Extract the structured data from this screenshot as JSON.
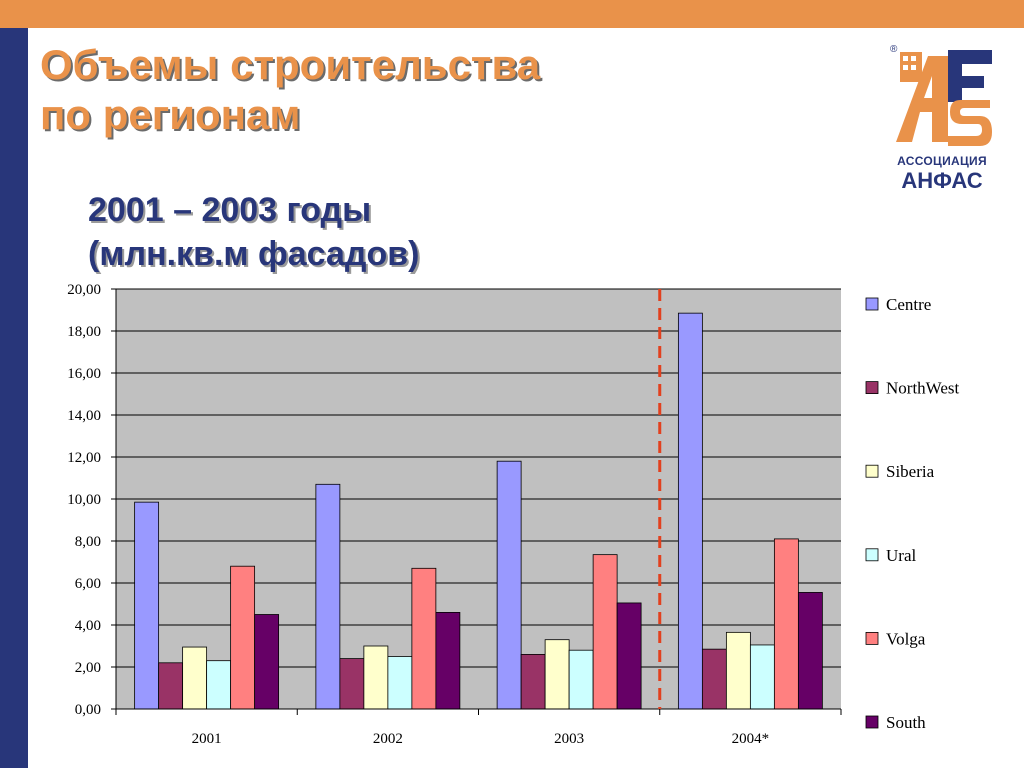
{
  "slide": {
    "title_line1": "Объемы строительства",
    "title_line2": "по регионам",
    "subtitle_line1": "2001 – 2003 годы",
    "subtitle_line2": "(млн.кв.м фасадов)"
  },
  "logo": {
    "association": "АССОЦИАЦИЯ",
    "name": "АНФАС",
    "registered": "®"
  },
  "colors": {
    "top_bar": "#e9924a",
    "side_bar": "#28367a",
    "plot_background": "#c0c0c0",
    "separator": "#e2401e"
  },
  "chart_data": {
    "type": "bar",
    "categories": [
      "2001",
      "2002",
      "2003",
      "2004*"
    ],
    "series": [
      {
        "name": "Centre",
        "color": "#9999ff",
        "values": [
          9.85,
          10.7,
          11.8,
          18.85
        ]
      },
      {
        "name": "NorthWest",
        "color": "#993366",
        "values": [
          2.2,
          2.4,
          2.6,
          2.85
        ]
      },
      {
        "name": "Siberia",
        "color": "#ffffcc",
        "values": [
          2.95,
          3.0,
          3.3,
          3.65
        ]
      },
      {
        "name": "Ural",
        "color": "#ccffff",
        "values": [
          2.3,
          2.5,
          2.8,
          3.05
        ]
      },
      {
        "name": "Volga",
        "color": "#ff8080",
        "values": [
          6.8,
          6.7,
          7.35,
          8.1
        ]
      },
      {
        "name": "South",
        "color": "#660066",
        "values": [
          4.5,
          4.6,
          5.05,
          5.55
        ]
      }
    ],
    "ylim": [
      0,
      20
    ],
    "y_ticks": [
      "0,00",
      "2,00",
      "4,00",
      "6,00",
      "8,00",
      "10,00",
      "12,00",
      "14,00",
      "16,00",
      "18,00",
      "20,00"
    ],
    "grid": true,
    "legend_position": "right",
    "separator": "dashed line between 2003 and 2004*"
  }
}
